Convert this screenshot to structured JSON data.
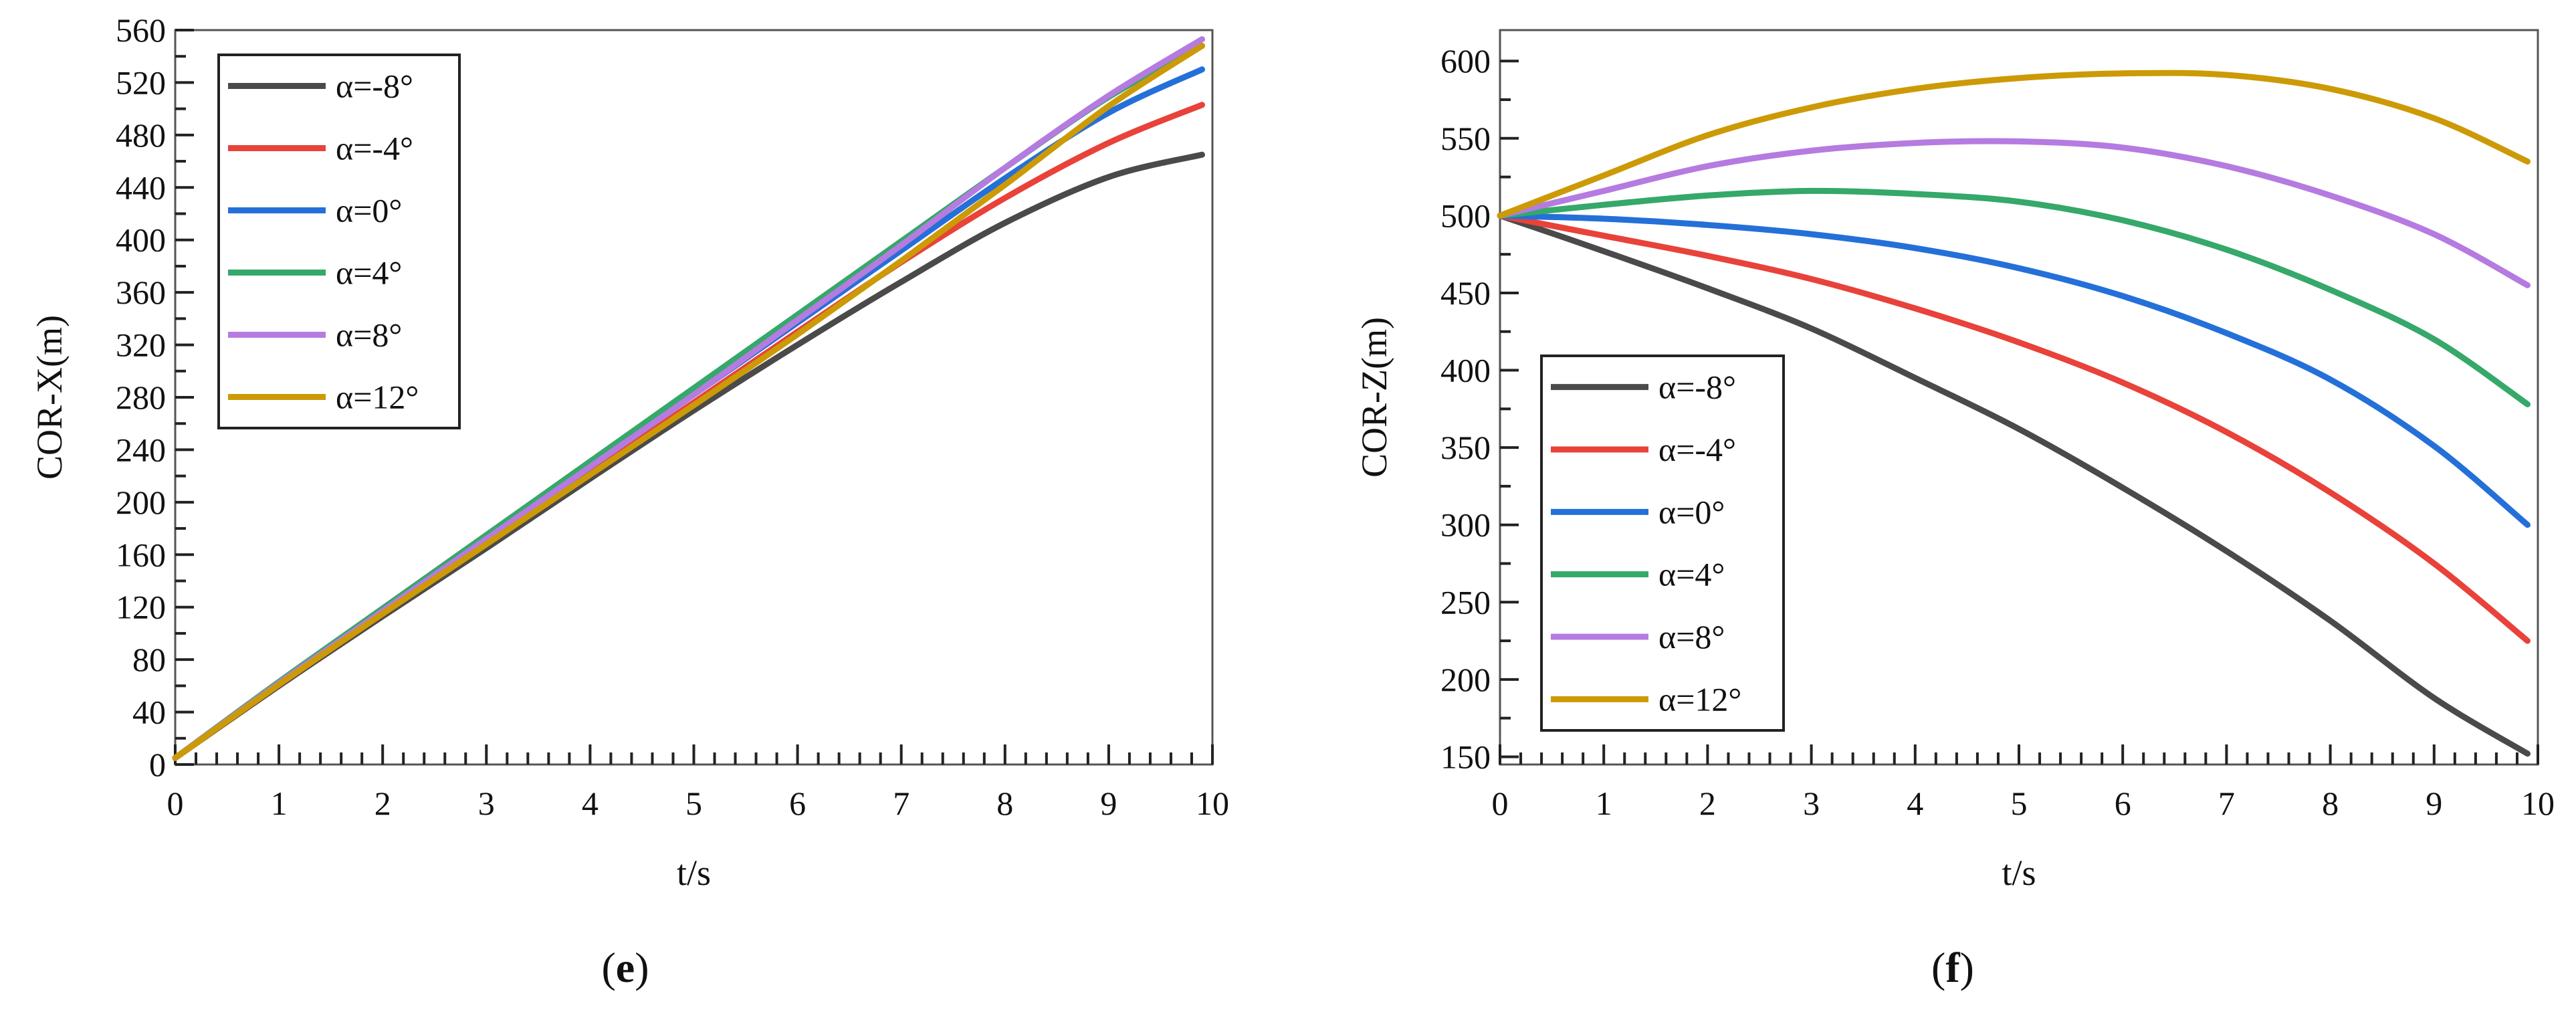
{
  "chart_data": [
    {
      "type": "line",
      "panel_label": "e",
      "xlabel": "t/s",
      "ylabel": "COR-X(m)",
      "xlim": [
        0,
        10
      ],
      "ylim": [
        0,
        560
      ],
      "x_ticks": [
        0,
        1,
        2,
        3,
        4,
        5,
        6,
        7,
        8,
        9,
        10
      ],
      "y_ticks": [
        0,
        40,
        80,
        120,
        160,
        200,
        240,
        280,
        320,
        360,
        400,
        440,
        480,
        520,
        560
      ],
      "legend_position": "top-left",
      "x": [
        0,
        1,
        2,
        3,
        4,
        5,
        6,
        7,
        8,
        9,
        9.9
      ],
      "series": [
        {
          "name": "α=-8°",
          "color": "#4a4a4a",
          "values": [
            5,
            60,
            113,
            165,
            218,
            270,
            320,
            368,
            413,
            448,
            465
          ]
        },
        {
          "name": "α=-4°",
          "color": "#e8423a",
          "values": [
            5,
            61,
            115,
            168,
            222,
            276,
            330,
            383,
            432,
            474,
            503
          ]
        },
        {
          "name": "α=0°",
          "color": "#2470d8",
          "values": [
            5,
            62,
            117,
            172,
            227,
            282,
            337,
            392,
            447,
            497,
            530
          ]
        },
        {
          "name": "α=4°",
          "color": "#35a86a",
          "values": [
            5,
            63,
            119,
            175,
            231,
            287,
            343,
            399,
            455,
            509,
            548
          ]
        },
        {
          "name": "α=8°",
          "color": "#b57be0",
          "values": [
            5,
            62,
            117,
            172,
            227,
            282,
            339,
            396,
            455,
            510,
            553
          ]
        },
        {
          "name": "α=12°",
          "color": "#cc9a06",
          "values": [
            5,
            61,
            115,
            168,
            221,
            274,
            328,
            384,
            442,
            502,
            548
          ]
        }
      ]
    },
    {
      "type": "line",
      "panel_label": "f",
      "xlabel": "t/s",
      "ylabel": "COR-Z(m)",
      "xlim": [
        0,
        10
      ],
      "ylim": [
        145,
        620
      ],
      "x_ticks": [
        0,
        1,
        2,
        3,
        4,
        5,
        6,
        7,
        8,
        9,
        10
      ],
      "y_ticks": [
        150,
        200,
        250,
        300,
        350,
        400,
        450,
        500,
        550,
        600
      ],
      "legend_position": "bottom-left",
      "x": [
        0,
        1,
        2,
        3,
        4,
        5,
        6,
        7,
        8,
        9,
        9.9
      ],
      "series": [
        {
          "name": "α=-8°",
          "color": "#4a4a4a",
          "values": [
            500,
            477,
            453,
            427,
            395,
            362,
            324,
            283,
            238,
            188,
            152
          ]
        },
        {
          "name": "α=-4°",
          "color": "#e8423a",
          "values": [
            500,
            487,
            474,
            459,
            440,
            418,
            392,
            360,
            321,
            275,
            225
          ]
        },
        {
          "name": "α=0°",
          "color": "#2470d8",
          "values": [
            500,
            498,
            494,
            488,
            479,
            466,
            448,
            424,
            394,
            351,
            300
          ]
        },
        {
          "name": "α=4°",
          "color": "#35a86a",
          "values": [
            500,
            507,
            513,
            516,
            514,
            509,
            497,
            478,
            452,
            420,
            378
          ]
        },
        {
          "name": "α=8°",
          "color": "#b57be0",
          "values": [
            500,
            516,
            532,
            542,
            547,
            548,
            544,
            532,
            513,
            488,
            455
          ]
        },
        {
          "name": "α=12°",
          "color": "#cc9a06",
          "values": [
            500,
            526,
            552,
            570,
            582,
            589,
            592,
            591,
            582,
            563,
            535
          ]
        }
      ]
    }
  ]
}
